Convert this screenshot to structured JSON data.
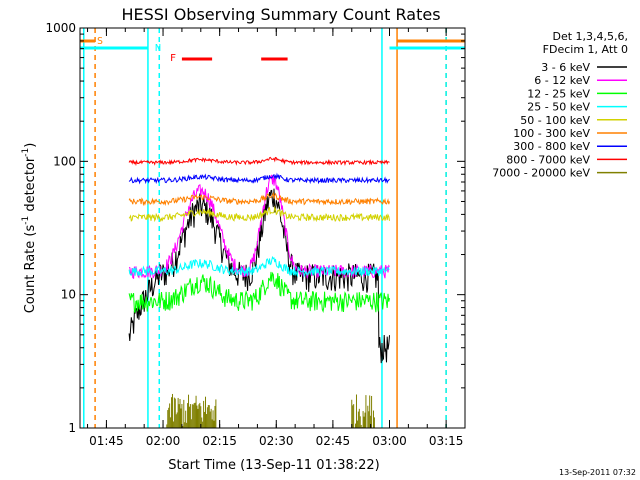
{
  "chart_data": {
    "type": "line",
    "title": "HESSI Observing Summary Count Rates",
    "xlabel": "Start Time (13-Sep-11 01:38:22)",
    "ylabel": "Count Rate (s⁻¹ detector⁻¹)",
    "ylabel_main": "Count Rate (s",
    "ylabel_mid": " detector",
    "ylabel_end": ")",
    "ylabel_sup": "-1",
    "yscale": "log",
    "xlim": [
      "01:38",
      "03:20"
    ],
    "ylim": [
      1,
      1000
    ],
    "xticks": [
      "01:45",
      "02:00",
      "02:15",
      "02:30",
      "02:45",
      "03:00",
      "03:15"
    ],
    "yticks": [
      "1",
      "10",
      "100",
      "1000"
    ],
    "timestamp": "13-Sep-2011 07:32",
    "legend_header": [
      "Det 1,3,4,5,6,",
      "FDecim 1, Att 0"
    ],
    "series": [
      {
        "name": "3 - 6 keV",
        "color": "#000000",
        "base": 4,
        "noise": 0.25
      },
      {
        "name": "6 - 12 keV",
        "color": "#ff00ff",
        "base": 15,
        "noise": 0.12
      },
      {
        "name": "12 - 25 keV",
        "color": "#00ff00",
        "base": 9,
        "noise": 0.18
      },
      {
        "name": "25 - 50 keV",
        "color": "#00ffff",
        "base": 15,
        "noise": 0.08
      },
      {
        "name": "50 - 100 keV",
        "color": "#d2d200",
        "base": 38,
        "noise": 0.06
      },
      {
        "name": "100 - 300 keV",
        "color": "#ff8000",
        "base": 50,
        "noise": 0.05
      },
      {
        "name": "300 - 800 keV",
        "color": "#0000ff",
        "base": 72,
        "noise": 0.04
      },
      {
        "name": "800 - 7000 keV",
        "color": "#ff0000",
        "base": 98,
        "noise": 0.03
      },
      {
        "name": "7000 - 20000 keV",
        "color": "#808000",
        "base": 1.3,
        "noise": 0.5
      }
    ],
    "markers": {
      "s_label": "S",
      "n_label": "N",
      "f_label": "F",
      "s_color": "#ff8000",
      "n_color": "#00ffff",
      "f_color": "#ff0000",
      "night_color": "#00ffff",
      "saa_color": "#ff8000",
      "flare_color": "#ff0000"
    },
    "events": {
      "night_intervals": [
        [
          "01:38",
          "01:56"
        ],
        [
          "03:00",
          "03:20"
        ]
      ],
      "saa_intervals": [
        [
          "01:38",
          "01:42"
        ],
        [
          "03:02",
          "03:20"
        ]
      ],
      "flare_intervals": [
        [
          "02:05",
          "02:13"
        ],
        [
          "02:26",
          "02:33"
        ]
      ],
      "data_gaps": [
        [
          "01:38",
          "01:51"
        ],
        [
          "03:00",
          "03:20"
        ]
      ]
    }
  }
}
